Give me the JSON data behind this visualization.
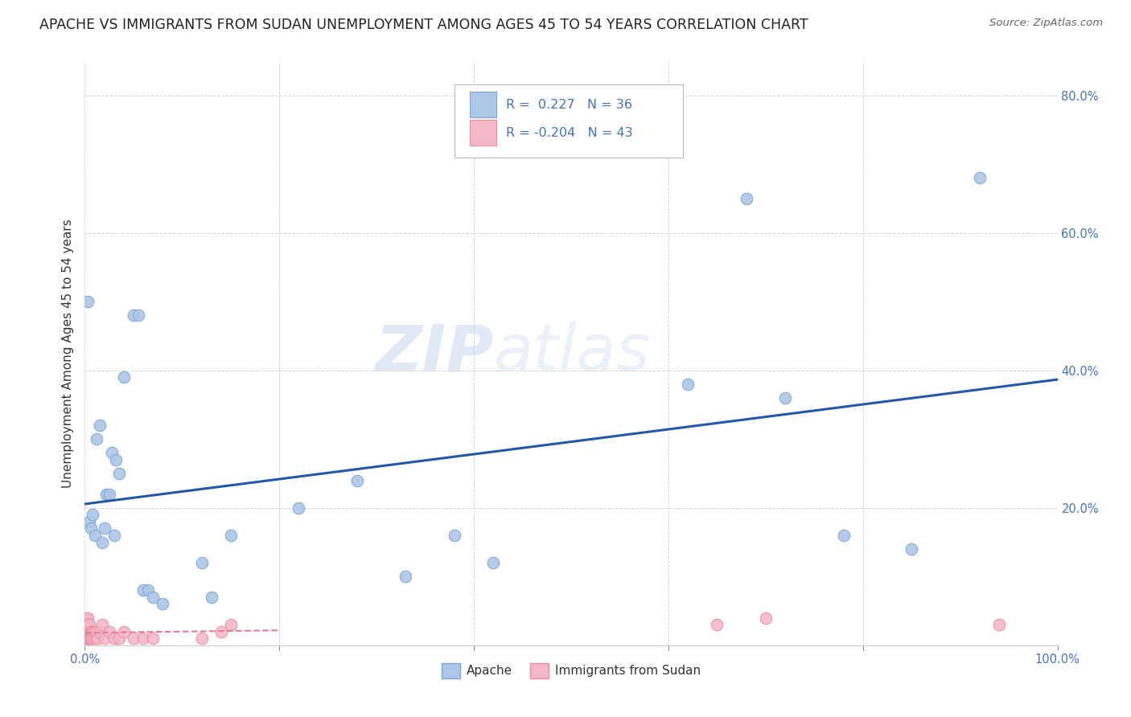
{
  "title": "APACHE VS IMMIGRANTS FROM SUDAN UNEMPLOYMENT AMONG AGES 45 TO 54 YEARS CORRELATION CHART",
  "source": "Source: ZipAtlas.com",
  "ylabel": "Unemployment Among Ages 45 to 54 years",
  "xlim": [
    0,
    1.0
  ],
  "ylim": [
    0,
    0.85
  ],
  "xticks": [
    0.0,
    0.2,
    0.4,
    0.6,
    0.8,
    1.0
  ],
  "xticklabels": [
    "0.0%",
    "",
    "",
    "",
    "",
    "100.0%"
  ],
  "yticks": [
    0.0,
    0.2,
    0.4,
    0.6,
    0.8
  ],
  "yticklabels": [
    "",
    "20.0%",
    "40.0%",
    "60.0%",
    "80.0%"
  ],
  "apache_color": "#aec6e8",
  "apache_edge": "#7aa8d0",
  "sudan_color": "#f5b8c8",
  "sudan_edge": "#e88fa0",
  "line_apache_color": "#2457a8",
  "line_sudan_color": "#e8799a",
  "r_apache": 0.227,
  "n_apache": 36,
  "r_sudan": -0.204,
  "n_sudan": 43,
  "watermark_zip": "ZIP",
  "watermark_atlas": "atlas",
  "apache_x": [
    0.003,
    0.005,
    0.006,
    0.008,
    0.01,
    0.012,
    0.015,
    0.018,
    0.02,
    0.022,
    0.025,
    0.028,
    0.03,
    0.032,
    0.035,
    0.04,
    0.05,
    0.055,
    0.06,
    0.065,
    0.07,
    0.08,
    0.12,
    0.13,
    0.15,
    0.22,
    0.28,
    0.33,
    0.38,
    0.42,
    0.62,
    0.68,
    0.72,
    0.78,
    0.85,
    0.92
  ],
  "apache_y": [
    0.5,
    0.18,
    0.17,
    0.19,
    0.16,
    0.3,
    0.32,
    0.15,
    0.17,
    0.22,
    0.22,
    0.28,
    0.16,
    0.27,
    0.25,
    0.39,
    0.48,
    0.48,
    0.08,
    0.08,
    0.07,
    0.06,
    0.12,
    0.07,
    0.16,
    0.2,
    0.24,
    0.1,
    0.16,
    0.12,
    0.38,
    0.65,
    0.36,
    0.16,
    0.14,
    0.68
  ],
  "sudan_x": [
    0.001,
    0.001,
    0.001,
    0.002,
    0.002,
    0.002,
    0.002,
    0.003,
    0.003,
    0.003,
    0.003,
    0.004,
    0.004,
    0.004,
    0.005,
    0.005,
    0.005,
    0.006,
    0.006,
    0.007,
    0.007,
    0.008,
    0.009,
    0.01,
    0.011,
    0.012,
    0.013,
    0.015,
    0.018,
    0.02,
    0.025,
    0.03,
    0.035,
    0.04,
    0.05,
    0.06,
    0.07,
    0.12,
    0.14,
    0.15,
    0.65,
    0.7,
    0.94
  ],
  "sudan_y": [
    0.01,
    0.02,
    0.03,
    0.01,
    0.02,
    0.03,
    0.04,
    0.01,
    0.02,
    0.03,
    0.04,
    0.01,
    0.02,
    0.03,
    0.01,
    0.02,
    0.03,
    0.01,
    0.02,
    0.01,
    0.02,
    0.02,
    0.01,
    0.02,
    0.01,
    0.02,
    0.01,
    0.02,
    0.03,
    0.01,
    0.02,
    0.01,
    0.01,
    0.02,
    0.01,
    0.01,
    0.01,
    0.01,
    0.02,
    0.03,
    0.03,
    0.04,
    0.03
  ],
  "background_color": "#ffffff",
  "grid_color": "#cccccc",
  "title_fontsize": 12.5,
  "axis_fontsize": 11,
  "tick_fontsize": 10.5
}
